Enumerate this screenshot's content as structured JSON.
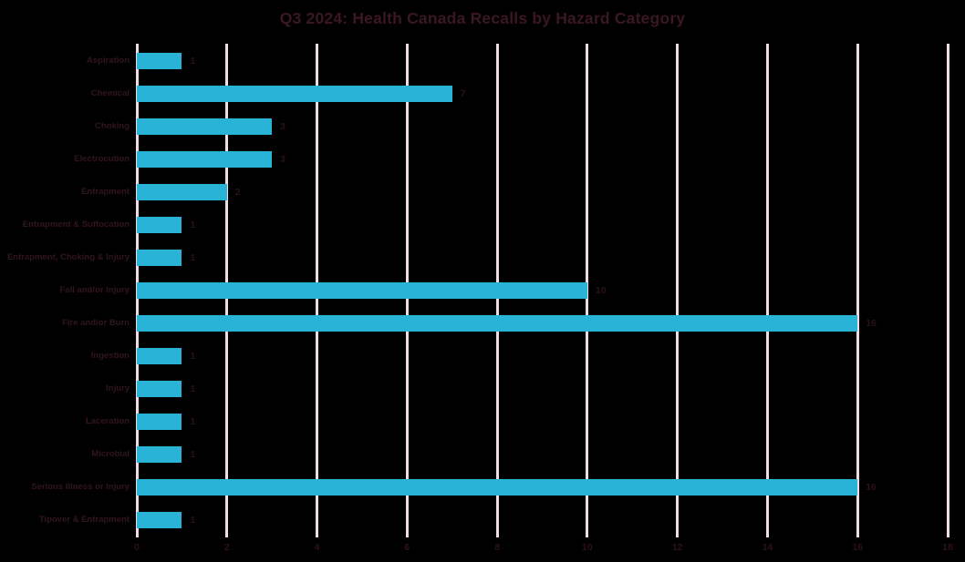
{
  "chart_data": {
    "type": "bar",
    "orientation": "horizontal",
    "title": "Q3 2024: Health Canada Recalls by Hazard Category",
    "categories": [
      "Aspiration",
      "Chemical",
      "Choking",
      "Electrocution",
      "Entrapment",
      "Entrapment & Suffocation",
      "Entrapment, Choking & Injury",
      "Fall and/or Injury",
      "Fire and/or Burn",
      "Ingestion",
      "Injury",
      "Laceration",
      "Microbial",
      "Serious Illness or Injury",
      "Tipover & Entrapment"
    ],
    "values": [
      1,
      7,
      3,
      3,
      2,
      1,
      1,
      10,
      16,
      1,
      1,
      1,
      1,
      16,
      1
    ],
    "data_labels": [
      "1",
      "7",
      "3",
      "3",
      "2",
      "1",
      "1",
      "10",
      "16",
      "1",
      "1",
      "1",
      "1",
      "16",
      "1"
    ],
    "xlabel": "",
    "ylabel": "",
    "xlim": [
      0,
      18
    ],
    "x_ticks": [
      "0",
      "2",
      "4",
      "6",
      "8",
      "10",
      "12",
      "14",
      "16",
      "18"
    ],
    "grid": "vertical",
    "legend": "none",
    "colors": {
      "background": "#000000",
      "bar": "#29b3d7",
      "gridline": "#efdce4",
      "title_text": "#3b1722",
      "category_text": "#321520",
      "value_text": "#2b1118"
    }
  }
}
